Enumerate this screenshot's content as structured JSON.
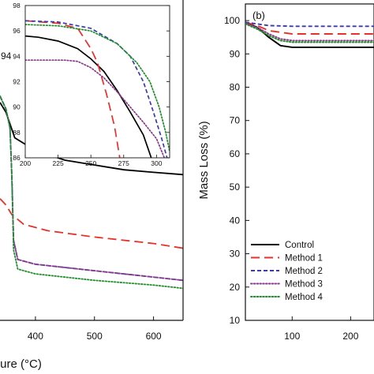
{
  "chart_data": [
    {
      "panel": "left (a, cropped)",
      "type": "line",
      "xlabel": "ture (°C)",
      "ylabel": "",
      "xlim": [
        340,
        650
      ],
      "ylim": [
        0,
        100
      ],
      "x_ticks": [
        "400",
        "500",
        "600"
      ],
      "y_ticks": [
        "94"
      ],
      "series": [
        {
          "name": "Control",
          "color": "#000000",
          "dash": "solid",
          "points": [
            [
              340,
              68
            ],
            [
              350,
              65
            ],
            [
              365,
              57
            ],
            [
              400,
              53
            ],
            [
              450,
              50
            ],
            [
              500,
              48.5
            ],
            [
              550,
              47
            ],
            [
              600,
              46.2
            ],
            [
              650,
              45.5
            ]
          ]
        },
        {
          "name": "Method 1",
          "color": "#e8312a",
          "dash": "long-dash",
          "points": [
            [
              340,
              38
            ],
            [
              350,
              36
            ],
            [
              360,
              33
            ],
            [
              380,
              30
            ],
            [
              420,
              28
            ],
            [
              500,
              26
            ],
            [
              600,
              24
            ],
            [
              650,
              22.5
            ]
          ]
        },
        {
          "name": "Method 2",
          "color": "#3a3ab4",
          "dash": "dash",
          "points": [
            [
              340,
              70
            ],
            [
              350,
              66
            ],
            [
              357,
              60
            ],
            [
              360,
              45
            ],
            [
              363,
              25
            ],
            [
              370,
              19
            ],
            [
              400,
              17.5
            ],
            [
              500,
              15.5
            ],
            [
              600,
              13.5
            ],
            [
              650,
              12.5
            ]
          ]
        },
        {
          "name": "Method 3",
          "color": "#8b3a8b",
          "dash": "dot",
          "points": [
            [
              340,
              70
            ],
            [
              350,
              66
            ],
            [
              357,
              60
            ],
            [
              360,
              45
            ],
            [
              363,
              25
            ],
            [
              370,
              19
            ],
            [
              400,
              17.5
            ],
            [
              500,
              15.5
            ],
            [
              600,
              13.5
            ],
            [
              650,
              12.5
            ]
          ]
        },
        {
          "name": "Method 4",
          "color": "#1f8f2a",
          "dash": "dot",
          "points": [
            [
              340,
              70
            ],
            [
              350,
              66
            ],
            [
              357,
              60
            ],
            [
              360,
              45
            ],
            [
              363,
              22
            ],
            [
              370,
              16
            ],
            [
              400,
              14.5
            ],
            [
              500,
              12.5
            ],
            [
              600,
              11
            ],
            [
              650,
              10
            ]
          ]
        }
      ]
    },
    {
      "panel": "inset",
      "type": "line",
      "xlim": [
        200,
        310
      ],
      "ylim": [
        86,
        98
      ],
      "x_ticks": [
        "200",
        "225",
        "250",
        "275",
        "300"
      ],
      "y_ticks": [
        "86",
        "88",
        "90",
        "92",
        "94",
        "96",
        "98"
      ],
      "series": [
        {
          "name": "Control",
          "color": "#000000",
          "dash": "solid",
          "points": [
            [
              200,
              95.6
            ],
            [
              210,
              95.5
            ],
            [
              225,
              95.2
            ],
            [
              240,
              94.6
            ],
            [
              250,
              93.8
            ],
            [
              260,
              92.8
            ],
            [
              270,
              91.3
            ],
            [
              280,
              89.6
            ],
            [
              290,
              87.8
            ],
            [
              296,
              86
            ]
          ]
        },
        {
          "name": "Method 1",
          "color": "#e8312a",
          "dash": "long-dash",
          "points": [
            [
              200,
              96.8
            ],
            [
              225,
              96.6
            ],
            [
              240,
              96.2
            ],
            [
              250,
              94.6
            ],
            [
              255,
              93.5
            ],
            [
              262,
              91
            ],
            [
              268,
              88.5
            ],
            [
              272,
              86
            ]
          ]
        },
        {
          "name": "Method 2",
          "color": "#3a3ab4",
          "dash": "dash",
          "points": [
            [
              200,
              96.8
            ],
            [
              225,
              96.7
            ],
            [
              250,
              96.2
            ],
            [
              270,
              95
            ],
            [
              280,
              94
            ],
            [
              290,
              92
            ],
            [
              298,
              89.5
            ],
            [
              304,
              87.5
            ],
            [
              308,
              86
            ]
          ]
        },
        {
          "name": "Method 3",
          "color": "#8b3a8b",
          "dash": "dot",
          "points": [
            [
              200,
              93.7
            ],
            [
              230,
              93.7
            ],
            [
              240,
              93.6
            ],
            [
              250,
              93.1
            ],
            [
              260,
              92.3
            ],
            [
              270,
              91.2
            ],
            [
              280,
              90
            ],
            [
              290,
              88.8
            ],
            [
              300,
              87.5
            ],
            [
              306,
              86
            ]
          ]
        },
        {
          "name": "Method 4",
          "color": "#1f8f2a",
          "dash": "dot",
          "points": [
            [
              200,
              96.5
            ],
            [
              225,
              96.4
            ],
            [
              250,
              96
            ],
            [
              270,
              95
            ],
            [
              285,
              93.5
            ],
            [
              295,
              92
            ],
            [
              302,
              90
            ],
            [
              307,
              88
            ],
            [
              310,
              86.5
            ]
          ]
        }
      ]
    },
    {
      "panel": "b",
      "type": "line",
      "xlabel": "",
      "ylabel": "Mass Loss (%)",
      "xlim": [
        20,
        240
      ],
      "ylim": [
        10,
        105
      ],
      "x_ticks": [
        "100",
        "200"
      ],
      "y_ticks": [
        "10",
        "20",
        "30",
        "40",
        "50",
        "60",
        "70",
        "80",
        "90",
        "100"
      ],
      "legend_position": "bottom-left",
      "series": [
        {
          "name": "Control",
          "color": "#000000",
          "dash": "solid",
          "points": [
            [
              20,
              99.5
            ],
            [
              40,
              98
            ],
            [
              60,
              95
            ],
            [
              80,
              92.5
            ],
            [
              100,
              92
            ],
            [
              150,
              92
            ],
            [
              200,
              92
            ],
            [
              240,
              92
            ]
          ]
        },
        {
          "name": "Method 1",
          "color": "#e8312a",
          "dash": "long-dash",
          "points": [
            [
              20,
              99.5
            ],
            [
              40,
              98.5
            ],
            [
              60,
              97
            ],
            [
              80,
              96.5
            ],
            [
              100,
              96
            ],
            [
              150,
              96
            ],
            [
              200,
              96
            ],
            [
              240,
              96
            ]
          ]
        },
        {
          "name": "Method 2",
          "color": "#3a3ab4",
          "dash": "dash",
          "points": [
            [
              20,
              99.5
            ],
            [
              40,
              99
            ],
            [
              60,
              98.5
            ],
            [
              100,
              98.3
            ],
            [
              150,
              98.3
            ],
            [
              200,
              98.3
            ],
            [
              240,
              98.3
            ]
          ]
        },
        {
          "name": "Method 3",
          "color": "#8b3a8b",
          "dash": "dot",
          "points": [
            [
              20,
              99
            ],
            [
              40,
              98
            ],
            [
              60,
              96
            ],
            [
              80,
              94.5
            ],
            [
              100,
              94
            ],
            [
              150,
              94
            ],
            [
              200,
              94
            ],
            [
              240,
              94
            ]
          ]
        },
        {
          "name": "Method 4",
          "color": "#1f8f2a",
          "dash": "dot",
          "points": [
            [
              20,
              99
            ],
            [
              40,
              97.5
            ],
            [
              60,
              95.5
            ],
            [
              80,
              94
            ],
            [
              100,
              93.5
            ],
            [
              150,
              93.5
            ],
            [
              200,
              93.5
            ],
            [
              240,
              93.5
            ]
          ]
        }
      ]
    }
  ],
  "panel_b_label": "(b)",
  "legend": [
    "Control",
    "Method 1",
    "Method 2",
    "Method 3",
    "Method 4"
  ]
}
